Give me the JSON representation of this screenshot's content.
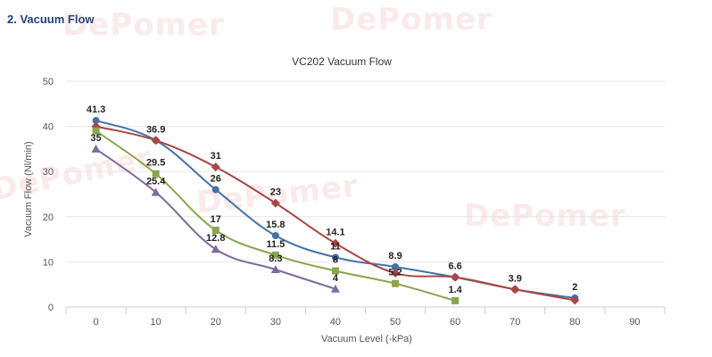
{
  "heading": "2. Vacuum Flow",
  "watermark": "DePomer",
  "chart_data": {
    "type": "line",
    "title": "VC202 Vacuum Flow",
    "xlabel": "Vacuum Level (-kPa)",
    "ylabel": "Vacuum Flow (Nl/min)",
    "x_categories": [
      "0",
      "10",
      "20",
      "30",
      "40",
      "50",
      "60",
      "70",
      "80",
      "90"
    ],
    "y_ticks": [
      "0",
      "10",
      "20",
      "30",
      "40",
      "50"
    ],
    "ylim": [
      0,
      50
    ],
    "grid": "horizontal",
    "legend": "none",
    "series": [
      {
        "color": "#4572a7",
        "marker": "circle",
        "x": [
          0,
          10,
          20,
          30,
          40,
          50,
          60,
          70,
          80
        ],
        "values": [
          41.3,
          36.9,
          26,
          15.8,
          11,
          8.9,
          6.6,
          3.9,
          2
        ],
        "labels": [
          "41.3",
          "",
          "26",
          "15.8",
          "11",
          "8.9",
          "6.6",
          "3.9",
          "2"
        ]
      },
      {
        "color": "#aa4643",
        "marker": "diamond",
        "x": [
          0,
          10,
          20,
          30,
          40,
          50,
          60,
          70,
          80
        ],
        "values": [
          40,
          36.9,
          31,
          23,
          14.1,
          7.5,
          6.6,
          3.9,
          1.5
        ],
        "labels": [
          "",
          "36.9",
          "31",
          "23",
          "14.1",
          "",
          "",
          "",
          ""
        ]
      },
      {
        "color": "#89a54e",
        "marker": "square",
        "x": [
          0,
          10,
          20,
          30,
          40,
          50,
          60
        ],
        "values": [
          39,
          29.5,
          17,
          11.5,
          8,
          5.2,
          1.4
        ],
        "labels": [
          "",
          "29.5",
          "17",
          "11.5",
          "8",
          "5.2",
          "1.4"
        ]
      },
      {
        "color": "#80699b",
        "marker": "triangle",
        "x": [
          0,
          10,
          20,
          30,
          40
        ],
        "values": [
          35,
          25.4,
          12.8,
          8.3,
          4
        ],
        "labels": [
          "35",
          "25.4",
          "12.8",
          "8.3",
          "4"
        ]
      }
    ]
  }
}
